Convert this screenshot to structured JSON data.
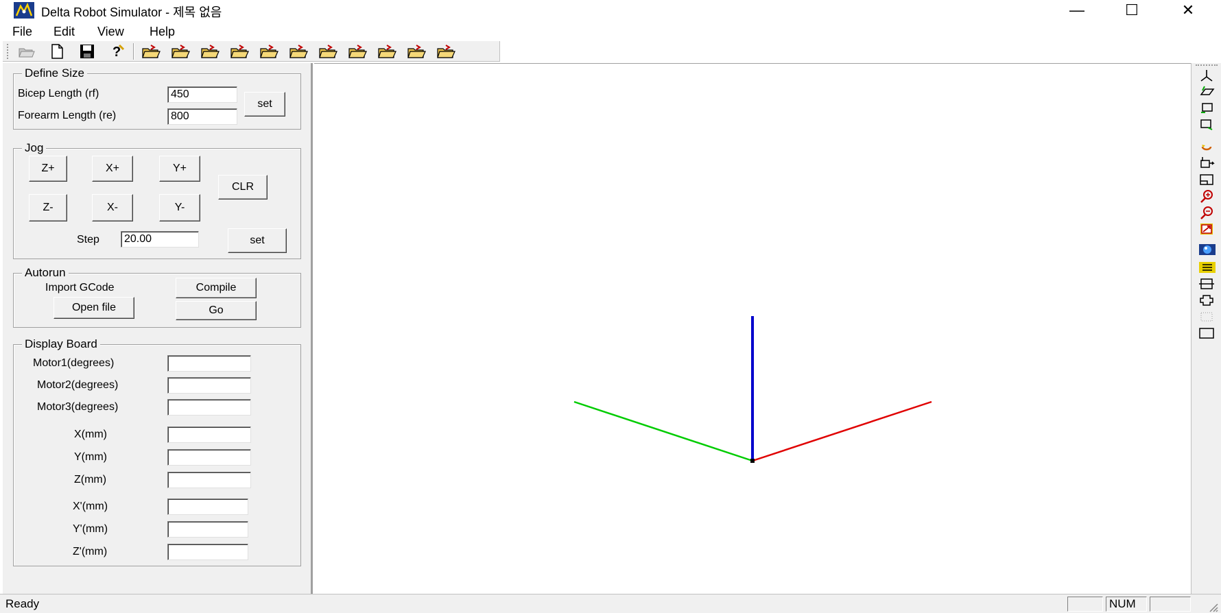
{
  "window": {
    "title": "Delta Robot Simulator - 제목 없음",
    "minimize": "—",
    "maximize": "☐",
    "close": "✕"
  },
  "menu": [
    "File",
    "Edit",
    "View",
    "Help"
  ],
  "toolbar": {
    "icons": [
      "open-icon",
      "new-icon",
      "save-icon",
      "help-icon",
      "gcode-folder-icon-1",
      "gcode-folder-icon-2",
      "gcode-folder-icon-3",
      "gcode-folder-icon-4",
      "gcode-folder-icon-5",
      "gcode-folder-icon-6",
      "gcode-folder-icon-7",
      "gcode-folder-icon-8",
      "gcode-folder-icon-9",
      "gcode-folder-icon-10",
      "gcode-folder-icon-11"
    ]
  },
  "define_size": {
    "title": "Define Size",
    "bicep_label": "Bicep Length (rf)",
    "bicep_value": "450",
    "forearm_label": "Forearm Length (re)",
    "forearm_value": "800",
    "set_label": "set"
  },
  "jog": {
    "title": "Jog",
    "z_plus": "Z+",
    "x_plus": "X+",
    "y_plus": "Y+",
    "z_minus": "Z-",
    "x_minus": "X-",
    "y_minus": "Y-",
    "clr": "CLR",
    "step_label": "Step",
    "step_value": "20.00",
    "set_label": "set"
  },
  "autorun": {
    "title": "Autorun",
    "import_label": "Import GCode",
    "compile_label": "Compile",
    "open_label": "Open file",
    "go_label": "Go"
  },
  "display_board": {
    "title": "Display Board",
    "motor1": "Motor1(degrees)",
    "motor2": "Motor2(degrees)",
    "motor3": "Motor3(degrees)",
    "x": "X(mm)",
    "y": "Y(mm)",
    "z": "Z(mm)",
    "xp": "X'(mm)",
    "yp": "Y'(mm)",
    "zp": "Z'(mm)"
  },
  "axes_colors": {
    "x": "#e00000",
    "y": "#00cc00",
    "z": "#0000cc"
  },
  "right_toolbar": {
    "icons": [
      "axis-view-icon",
      "iso-plane-icon",
      "front-view-icon",
      "side-view-icon",
      "rotate-icon",
      "pan-icon",
      "window-view-icon",
      "zoom-in-icon",
      "zoom-out-icon",
      "fit-all-icon",
      "shaded-icon",
      "wire-color-icon",
      "box-frame-icon",
      "outline-icon",
      "points-icon",
      "rectangle-icon"
    ]
  },
  "status": {
    "text": "Ready",
    "num": "NUM"
  }
}
